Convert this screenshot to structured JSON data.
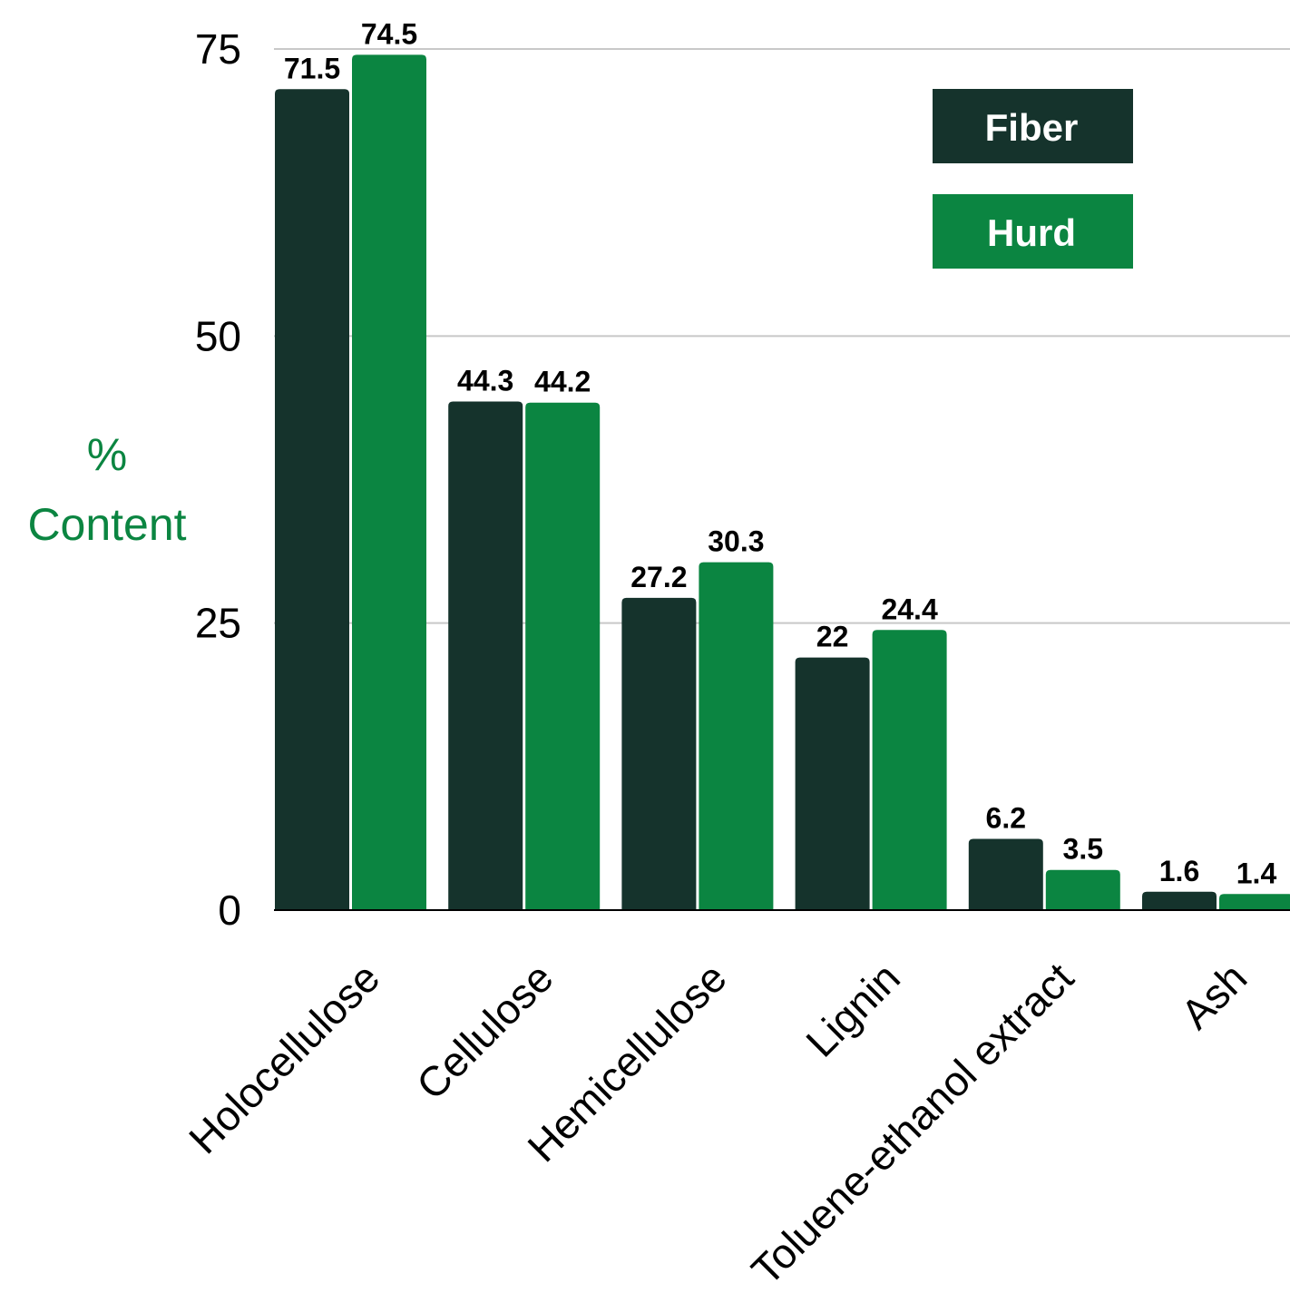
{
  "chart_data": {
    "type": "bar",
    "title": "",
    "ylabel_lines": [
      "%",
      "Content"
    ],
    "xlabel": "",
    "ylim": [
      0,
      75
    ],
    "yticks": [
      0,
      25,
      50,
      75
    ],
    "grid": true,
    "legend_position": "top-right",
    "categories": [
      "Holocellulose",
      "Cellulose",
      "Hemicellulose",
      "Lignin",
      "Toluene-ethanol extract",
      "Ash"
    ],
    "series": [
      {
        "name": "Fiber",
        "color": "#15332c",
        "values": [
          71.5,
          44.3,
          27.2,
          22,
          6.2,
          1.6
        ],
        "labels": [
          "71.5",
          "44.3",
          "27.2",
          "22",
          "6.2",
          "1.6"
        ]
      },
      {
        "name": "Hurd",
        "color": "#0b8541",
        "values": [
          74.5,
          44.2,
          30.3,
          24.4,
          3.5,
          1.4
        ],
        "labels": [
          "74.5",
          "44.2",
          "30.3",
          "24.4",
          "3.5",
          "1.4"
        ]
      }
    ],
    "ylabel_color": "#0b8541",
    "grid_color": "#c8c8c8"
  }
}
